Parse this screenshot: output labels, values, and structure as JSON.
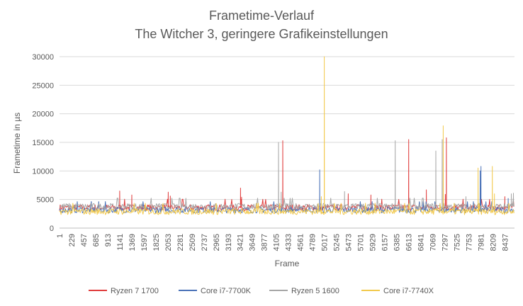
{
  "chart_data": {
    "type": "line",
    "title": "Frametime-Verlauf",
    "subtitle": "The Witcher 3, geringere Grafikeinstellungen",
    "xlabel": "Frame",
    "ylabel": "Frametime in µs",
    "ylim": [
      0,
      30000
    ],
    "yticks": [
      "0",
      "5000",
      "10000",
      "15000",
      "20000",
      "25000",
      "30000"
    ],
    "xticks": [
      "1",
      "229",
      "457",
      "685",
      "913",
      "1141",
      "1369",
      "1597",
      "1825",
      "2053",
      "2281",
      "2509",
      "2737",
      "2965",
      "3193",
      "3421",
      "3649",
      "3877",
      "4105",
      "4333",
      "4561",
      "4789",
      "5017",
      "5245",
      "5473",
      "5701",
      "5929",
      "6157",
      "6385",
      "6613",
      "6841",
      "7069",
      "7297",
      "7525",
      "7753",
      "7981",
      "8209",
      "8437"
    ],
    "xlim": [
      1,
      8620
    ],
    "grid": "horizontal",
    "legend_position": "bottom",
    "series": [
      {
        "name": "Ryzen 7 1700",
        "color": "#e03c3c",
        "baseline": 3600,
        "spikes": [
          [
            1141,
            6500
          ],
          [
            1370,
            5800
          ],
          [
            2060,
            6300
          ],
          [
            2100,
            5600
          ],
          [
            3430,
            7000
          ],
          [
            3450,
            5400
          ],
          [
            4230,
            15300
          ],
          [
            5470,
            6000
          ],
          [
            5900,
            5800
          ],
          [
            6615,
            15500
          ],
          [
            6950,
            6700
          ],
          [
            7330,
            15800
          ],
          [
            7310,
            5900
          ],
          [
            8437,
            5500
          ]
        ]
      },
      {
        "name": "Core i7-7700K",
        "color": "#4a72b8",
        "baseline": 3200,
        "spikes": [
          [
            4930,
            10200
          ],
          [
            7985,
            10800
          ],
          [
            7970,
            10000
          ],
          [
            8500,
            5200
          ]
        ]
      },
      {
        "name": "Ryzen 5 1600",
        "color": "#a6a6a6",
        "baseline": 3800,
        "spikes": [
          [
            4150,
            15000
          ],
          [
            4200,
            6300
          ],
          [
            5400,
            6400
          ],
          [
            6360,
            15300
          ],
          [
            7130,
            13500
          ],
          [
            7250,
            15500
          ],
          [
            7700,
            5500
          ],
          [
            8560,
            6000
          ],
          [
            8600,
            6100
          ]
        ]
      },
      {
        "name": "Core i7-7740X",
        "color": "#f2c94c",
        "baseline": 2900,
        "spikes": [
          [
            5017,
            30000
          ],
          [
            4960,
            5500
          ],
          [
            7270,
            17900
          ],
          [
            7930,
            10500
          ],
          [
            8200,
            10800
          ],
          [
            8240,
            6000
          ]
        ]
      }
    ]
  }
}
